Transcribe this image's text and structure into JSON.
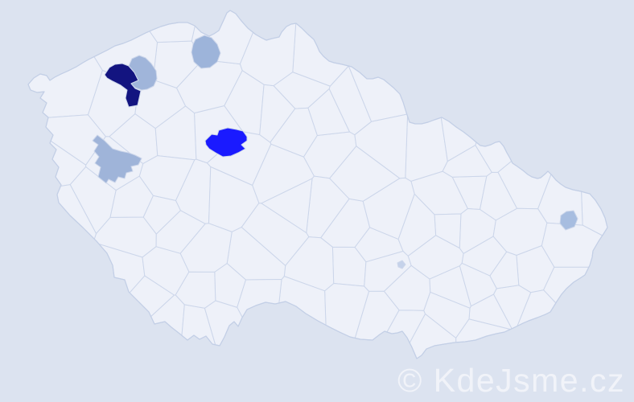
{
  "watermark": {
    "text": "© KdeJsme.cz",
    "color": "#ffffff",
    "opacity": "0.6"
  },
  "colors": {
    "sea": "#dce3f0",
    "land": "#eef1f9",
    "district_border": "#ccd6ea",
    "country_border": "#c3cfe6"
  },
  "highlighted_districts": [
    {
      "id": "district-northwest-darkest",
      "color": "#131480"
    },
    {
      "id": "district-northwest-medium",
      "color": "#a0b5da"
    },
    {
      "id": "district-north-medium",
      "color": "#9db4da"
    },
    {
      "id": "district-prague-bright",
      "color": "#1a1aff"
    },
    {
      "id": "district-west-medium",
      "color": "#9fb4d9"
    },
    {
      "id": "district-east-light",
      "color": "#a7bde0"
    },
    {
      "id": "district-center-faintest",
      "color": "#c5d2ea"
    }
  ]
}
